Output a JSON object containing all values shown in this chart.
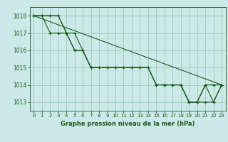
{
  "background_color": "#cce8e8",
  "grid_color": "#99ccbb",
  "line_color": "#1a5c1a",
  "marker_color": "#1a5c1a",
  "xlabel": "Graphe pression niveau de la mer (hPa)",
  "xlabel_color": "#1a5c1a",
  "xlim": [
    -0.5,
    23.5
  ],
  "ylim": [
    1012.5,
    1018.5
  ],
  "yticks": [
    1013,
    1014,
    1015,
    1016,
    1017,
    1018
  ],
  "xticks": [
    0,
    1,
    2,
    3,
    4,
    5,
    6,
    7,
    8,
    9,
    10,
    11,
    12,
    13,
    14,
    15,
    16,
    17,
    18,
    19,
    20,
    21,
    22,
    23
  ],
  "series": [
    [
      1018,
      1018,
      1018,
      1018,
      1017,
      1016,
      1016,
      1015,
      1015,
      1015,
      1015,
      1015,
      1015,
      1015,
      1015,
      1014,
      1014,
      1014,
      1014,
      1013,
      1013,
      1014,
      1013,
      1014
    ],
    [
      1018,
      1018,
      1017,
      1017,
      1017,
      1016,
      1016,
      1015,
      1015,
      1015,
      1015,
      1015,
      1015,
      1015,
      1015,
      1014,
      1014,
      1014,
      1014,
      1013,
      1013,
      1013,
      1013,
      1014
    ],
    [
      1018,
      1018,
      1018,
      1018,
      1017,
      1017,
      1016,
      1015,
      1015,
      1015,
      1015,
      1015,
      1015,
      1015,
      1015,
      1014,
      1014,
      1014,
      1014,
      1013,
      1013,
      1014,
      1014,
      1014
    ],
    [
      1018,
      null,
      null,
      null,
      null,
      null,
      null,
      null,
      null,
      null,
      null,
      null,
      null,
      null,
      null,
      null,
      null,
      null,
      null,
      null,
      null,
      null,
      null,
      1014
    ]
  ],
  "tick_fontsize": 5.0,
  "ylabel_fontsize": 5.5,
  "xlabel_fontsize": 6.0
}
